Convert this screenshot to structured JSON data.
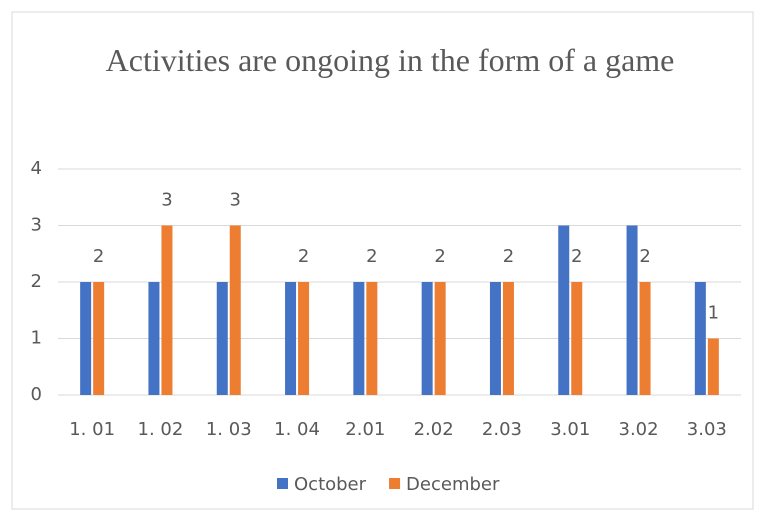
{
  "chart_data": {
    "type": "bar",
    "title": "Activities are ongoing in the form of a game",
    "categories": [
      "1. 01",
      "1. 02",
      "1. 03",
      "1. 04",
      "2.01",
      "2.02",
      "2.03",
      "3.01",
      "3.02",
      "3.03"
    ],
    "series": [
      {
        "name": "October",
        "color": "#4472c4",
        "values": [
          2,
          2,
          2,
          2,
          2,
          2,
          2,
          3,
          3,
          2
        ],
        "data_labels": false
      },
      {
        "name": "December",
        "color": "#ed7d31",
        "values": [
          2,
          3,
          3,
          2,
          2,
          2,
          2,
          2,
          2,
          1
        ],
        "data_labels": true
      }
    ],
    "ylim": [
      0,
      4
    ],
    "yticks": [
      0,
      1,
      2,
      3,
      4
    ],
    "grid": true,
    "legend": "bottom"
  }
}
